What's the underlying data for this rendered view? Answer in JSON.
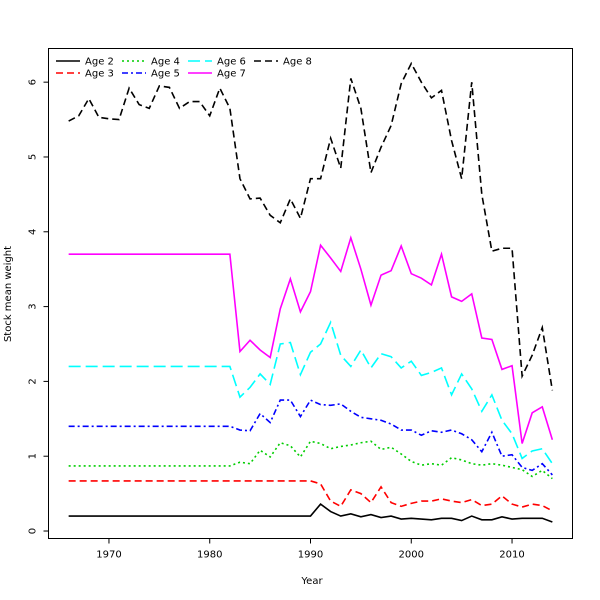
{
  "chart_data": {
    "type": "line",
    "title": "",
    "xlabel": "Year",
    "ylabel": "Stock mean weight",
    "xlim": [
      1964,
      2016
    ],
    "ylim": [
      -0.1,
      6.45
    ],
    "x_ticks": [
      1970,
      1980,
      1990,
      2000,
      2010
    ],
    "y_ticks": [
      0,
      1,
      2,
      3,
      4,
      5,
      6
    ],
    "grid": false,
    "legend_placement": "top-left",
    "x": [
      1966,
      1967,
      1968,
      1969,
      1970,
      1971,
      1972,
      1973,
      1974,
      1975,
      1976,
      1977,
      1978,
      1979,
      1980,
      1981,
      1982,
      1983,
      1984,
      1985,
      1986,
      1987,
      1988,
      1989,
      1990,
      1991,
      1992,
      1993,
      1994,
      1995,
      1996,
      1997,
      1998,
      1999,
      2000,
      2001,
      2002,
      2003,
      2004,
      2005,
      2006,
      2007,
      2008,
      2009,
      2010,
      2011,
      2012,
      2013,
      2014
    ],
    "series": [
      {
        "name": "Age 2",
        "color": "#000000",
        "dash": "solid",
        "values": [
          0.2,
          0.2,
          0.2,
          0.2,
          0.2,
          0.2,
          0.2,
          0.2,
          0.2,
          0.2,
          0.2,
          0.2,
          0.2,
          0.2,
          0.2,
          0.2,
          0.2,
          0.2,
          0.2,
          0.2,
          0.2,
          0.2,
          0.2,
          0.2,
          0.2,
          0.36,
          0.26,
          0.2,
          0.23,
          0.19,
          0.22,
          0.18,
          0.2,
          0.16,
          0.17,
          0.16,
          0.15,
          0.17,
          0.17,
          0.14,
          0.2,
          0.15,
          0.15,
          0.19,
          0.16,
          0.17,
          0.17,
          0.17,
          0.12
        ]
      },
      {
        "name": "Age 3",
        "color": "#ff0000",
        "dash": "dashed",
        "values": [
          0.67,
          0.67,
          0.67,
          0.67,
          0.67,
          0.67,
          0.67,
          0.67,
          0.67,
          0.67,
          0.67,
          0.67,
          0.67,
          0.67,
          0.67,
          0.67,
          0.67,
          0.67,
          0.67,
          0.67,
          0.67,
          0.67,
          0.67,
          0.67,
          0.67,
          0.63,
          0.4,
          0.33,
          0.55,
          0.5,
          0.38,
          0.59,
          0.38,
          0.33,
          0.37,
          0.4,
          0.4,
          0.43,
          0.4,
          0.38,
          0.42,
          0.34,
          0.36,
          0.47,
          0.36,
          0.32,
          0.36,
          0.34,
          0.27
        ]
      },
      {
        "name": "Age 4",
        "color": "#00cd00",
        "dash": "dotted",
        "values": [
          0.87,
          0.87,
          0.87,
          0.87,
          0.87,
          0.87,
          0.87,
          0.87,
          0.87,
          0.87,
          0.87,
          0.87,
          0.87,
          0.87,
          0.87,
          0.87,
          0.87,
          0.92,
          0.9,
          1.08,
          0.99,
          1.18,
          1.14,
          0.99,
          1.2,
          1.17,
          1.1,
          1.13,
          1.15,
          1.18,
          1.2,
          1.09,
          1.12,
          1.03,
          0.93,
          0.88,
          0.9,
          0.88,
          0.98,
          0.95,
          0.9,
          0.88,
          0.9,
          0.88,
          0.85,
          0.82,
          0.73,
          0.81,
          0.7
        ]
      },
      {
        "name": "Age 5",
        "color": "#0000ff",
        "dash": "dashdot",
        "values": [
          1.4,
          1.4,
          1.4,
          1.4,
          1.4,
          1.4,
          1.4,
          1.4,
          1.4,
          1.4,
          1.4,
          1.4,
          1.4,
          1.4,
          1.4,
          1.4,
          1.4,
          1.35,
          1.34,
          1.57,
          1.45,
          1.75,
          1.75,
          1.53,
          1.75,
          1.69,
          1.68,
          1.7,
          1.6,
          1.52,
          1.5,
          1.48,
          1.43,
          1.35,
          1.35,
          1.28,
          1.34,
          1.32,
          1.35,
          1.3,
          1.22,
          1.06,
          1.32,
          1.0,
          1.02,
          0.85,
          0.81,
          0.9,
          0.75
        ]
      },
      {
        "name": "Age 6",
        "color": "#00ffff",
        "dash": "longdash",
        "values": [
          2.2,
          2.2,
          2.2,
          2.2,
          2.2,
          2.2,
          2.2,
          2.2,
          2.2,
          2.2,
          2.2,
          2.2,
          2.2,
          2.2,
          2.2,
          2.2,
          2.2,
          1.79,
          1.92,
          2.1,
          1.96,
          2.5,
          2.52,
          2.09,
          2.39,
          2.5,
          2.79,
          2.35,
          2.2,
          2.42,
          2.18,
          2.37,
          2.33,
          2.18,
          2.27,
          2.08,
          2.12,
          2.18,
          1.82,
          2.1,
          1.9,
          1.6,
          1.82,
          1.48,
          1.3,
          0.97,
          1.07,
          1.1,
          0.9
        ]
      },
      {
        "name": "Age 7",
        "color": "#ff00ff",
        "dash": "solid",
        "values": [
          3.7,
          3.7,
          3.7,
          3.7,
          3.7,
          3.7,
          3.7,
          3.7,
          3.7,
          3.7,
          3.7,
          3.7,
          3.7,
          3.7,
          3.7,
          3.7,
          3.7,
          2.4,
          2.55,
          2.42,
          2.32,
          2.97,
          3.37,
          2.93,
          3.2,
          3.82,
          3.65,
          3.47,
          3.92,
          3.5,
          3.02,
          3.42,
          3.48,
          3.81,
          3.44,
          3.38,
          3.29,
          3.7,
          3.13,
          3.07,
          3.17,
          2.58,
          2.56,
          2.16,
          2.21,
          1.17,
          1.58,
          1.66,
          1.22
        ]
      },
      {
        "name": "Age 8",
        "color": "#000000",
        "dash": "dashed",
        "values": [
          5.48,
          5.55,
          5.78,
          5.53,
          5.51,
          5.5,
          5.92,
          5.7,
          5.65,
          5.95,
          5.93,
          5.65,
          5.74,
          5.74,
          5.55,
          5.92,
          5.65,
          4.71,
          4.44,
          4.45,
          4.22,
          4.12,
          4.44,
          4.18,
          4.71,
          4.71,
          5.25,
          4.85,
          6.05,
          5.65,
          4.79,
          5.13,
          5.42,
          5.98,
          6.25,
          6.0,
          5.79,
          5.89,
          5.22,
          4.71,
          6.0,
          4.5,
          3.74,
          3.78,
          3.78,
          2.07,
          2.35,
          2.72,
          1.88
        ]
      }
    ]
  }
}
